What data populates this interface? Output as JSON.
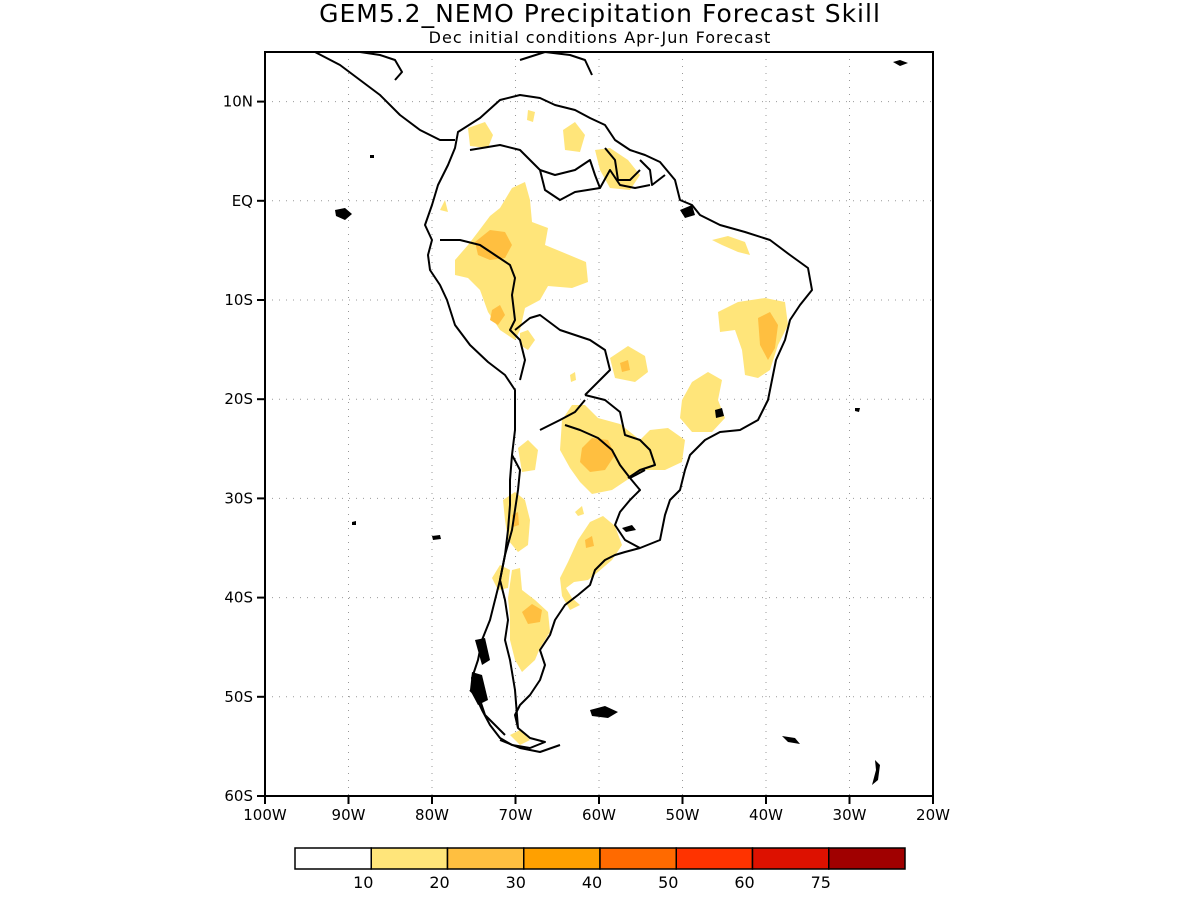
{
  "header": {
    "title": "GEM5.2_NEMO Precipitation Forecast Skill",
    "subtitle": "Dec initial conditions  Apr-Jun Forecast"
  },
  "map": {
    "lon_range": [
      -100,
      -20
    ],
    "lat_range": [
      -60,
      15
    ],
    "lat_ticks": [
      {
        "value": 10,
        "label": "10N"
      },
      {
        "value": 0,
        "label": "EQ"
      },
      {
        "value": -10,
        "label": "10S"
      },
      {
        "value": -20,
        "label": "20S"
      },
      {
        "value": -30,
        "label": "30S"
      },
      {
        "value": -40,
        "label": "40S"
      },
      {
        "value": -50,
        "label": "50S"
      },
      {
        "value": -60,
        "label": "60S"
      }
    ],
    "lon_ticks": [
      {
        "value": -100,
        "label": "100W"
      },
      {
        "value": -90,
        "label": "90W"
      },
      {
        "value": -80,
        "label": "80W"
      },
      {
        "value": -70,
        "label": "70W"
      },
      {
        "value": -60,
        "label": "60W"
      },
      {
        "value": -50,
        "label": "50W"
      },
      {
        "value": -40,
        "label": "40W"
      },
      {
        "value": -30,
        "label": "30W"
      },
      {
        "value": -20,
        "label": "20W"
      }
    ],
    "gridlines": "dotted"
  },
  "colorbar": {
    "colors": [
      "#ffffff",
      "#ffe57a",
      "#ffbf40",
      "#ffa000",
      "#ff6a00",
      "#ff3300",
      "#dd1100",
      "#a00000"
    ],
    "labels": [
      "10",
      "20",
      "30",
      "40",
      "50",
      "60",
      "75"
    ]
  }
}
